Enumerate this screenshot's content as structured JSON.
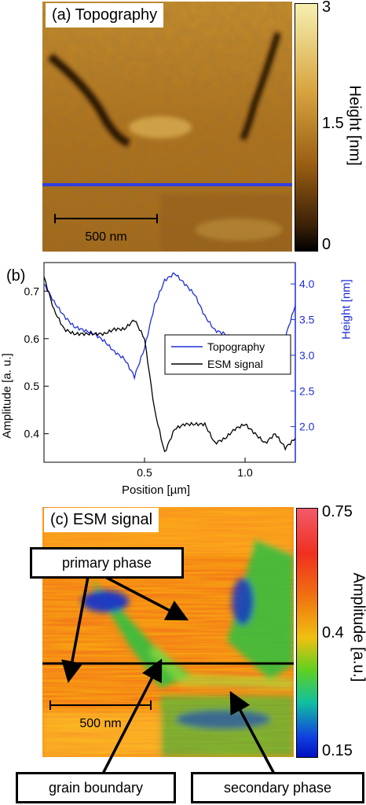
{
  "panel_a": {
    "label": "(a) Topography",
    "scalebar": "500 nm",
    "colorbar": {
      "ticks": [
        "3",
        "1.5",
        "0"
      ],
      "title": "Height [nm]"
    },
    "colors": {
      "line": "#2f3fe0",
      "low": "#000000",
      "mid": "#b06a10",
      "high": "#f6f0b0"
    }
  },
  "panel_b": {
    "label": "(b)",
    "xlabel": "Position [µm]",
    "ylabel_left": "Amplitude [a. u.]",
    "ylabel_right": "Height [nm]",
    "legend": [
      "Topography",
      "ESM signal"
    ],
    "x_ticks": [
      "0.5",
      "1.0"
    ],
    "y_left_ticks": [
      "0.7",
      "0.6",
      "0.5",
      "0.4"
    ],
    "y_right_ticks": [
      "4.0",
      "3.5",
      "3.0",
      "2.5",
      "2.0"
    ],
    "colors": {
      "topography": "#1f2fd8",
      "esm": "#000000"
    }
  },
  "panel_c": {
    "label": "(c) ESM signal",
    "scalebar": "500 nm",
    "colorbar": {
      "ticks": [
        "0.75",
        "0.4",
        "0.15"
      ],
      "title": "Amplitude [a.u.]"
    },
    "callouts": {
      "primary": "primary phase",
      "grain": "grain boundary",
      "secondary": "secondary phase"
    }
  },
  "chart_data": {
    "type": "line",
    "x_unit": "µm",
    "xlim": [
      0,
      1.25
    ],
    "series": [
      {
        "name": "Topography",
        "axis": "right",
        "ylim": [
          1.5,
          4.3
        ],
        "x": [
          0.0,
          0.05,
          0.1,
          0.15,
          0.2,
          0.25,
          0.3,
          0.35,
          0.4,
          0.45,
          0.5,
          0.55,
          0.6,
          0.65,
          0.7,
          0.75,
          0.8,
          0.85,
          0.9,
          0.95,
          1.0,
          1.05,
          1.1,
          1.15,
          1.2,
          1.25
        ],
        "y": [
          4.0,
          3.75,
          3.55,
          3.4,
          3.35,
          3.3,
          3.2,
          3.05,
          2.95,
          2.7,
          3.1,
          3.7,
          4.05,
          4.15,
          4.0,
          3.85,
          3.55,
          3.35,
          3.3,
          3.2,
          2.9,
          2.95,
          3.1,
          3.1,
          3.25,
          3.7
        ]
      },
      {
        "name": "ESM signal",
        "axis": "left",
        "ylim": [
          0.34,
          0.76
        ],
        "x": [
          0.0,
          0.05,
          0.1,
          0.15,
          0.2,
          0.25,
          0.3,
          0.35,
          0.4,
          0.45,
          0.5,
          0.55,
          0.6,
          0.65,
          0.7,
          0.75,
          0.8,
          0.85,
          0.9,
          0.95,
          1.0,
          1.05,
          1.1,
          1.15,
          1.2,
          1.25
        ],
        "y": [
          0.73,
          0.66,
          0.62,
          0.61,
          0.61,
          0.61,
          0.61,
          0.62,
          0.62,
          0.64,
          0.6,
          0.45,
          0.36,
          0.41,
          0.42,
          0.42,
          0.42,
          0.38,
          0.39,
          0.41,
          0.42,
          0.4,
          0.38,
          0.4,
          0.37,
          0.39
        ]
      }
    ]
  }
}
